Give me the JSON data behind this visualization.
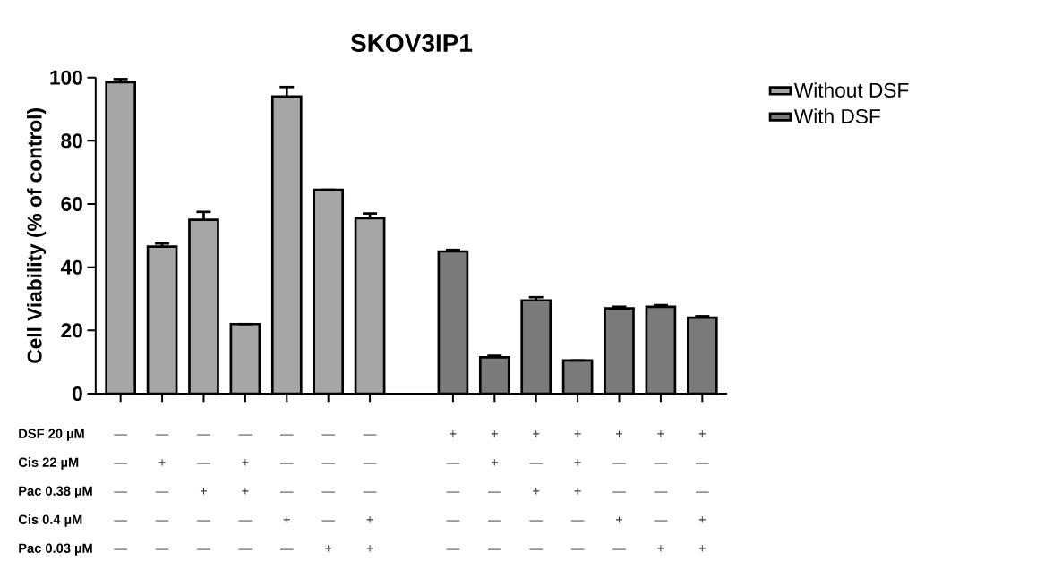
{
  "chart_data": {
    "type": "bar",
    "title": "SKOV3IP1",
    "ylabel": "Cell Viability (% of control)",
    "categories": [
      "— — — — —",
      "— + — — —",
      "— — + — —",
      "— + + — —",
      "— — — + —",
      "— — — — +",
      "— — — + +",
      null,
      "+ — — — —",
      "+ + — — —",
      "+ — + — —",
      "+ + + — —",
      "+ — — + —",
      "+ — — — +",
      "+ — — + +"
    ],
    "series": [
      {
        "name": "Without DSF",
        "color": "#a6a6a6",
        "values": [
          98.5,
          46.5,
          55,
          22,
          94,
          64.5,
          55.5,
          null,
          null,
          null,
          null,
          null,
          null,
          null,
          null
        ],
        "errors": [
          1,
          1,
          2.5,
          null,
          3,
          null,
          1.5,
          null,
          null,
          null,
          null,
          null,
          null,
          null,
          null
        ]
      },
      {
        "name": "With DSF",
        "color": "#7a7a7a",
        "values": [
          null,
          null,
          null,
          null,
          null,
          null,
          null,
          null,
          45,
          11.5,
          29.5,
          10.5,
          27,
          27.5,
          24
        ],
        "errors": [
          null,
          null,
          null,
          null,
          null,
          null,
          null,
          null,
          0.5,
          0.5,
          1,
          null,
          0.5,
          0.5,
          0.5
        ]
      }
    ],
    "ylim": [
      0,
      100
    ],
    "yticks": [
      0,
      20,
      40,
      60,
      80,
      100
    ],
    "grid": false,
    "legend": "top right",
    "annotations": [
      "DSF 20 µM",
      "Cis 22 µM",
      "Pac 0.38 µM",
      "Cis 0.4 µM",
      "Pac 0.03 µM"
    ]
  }
}
